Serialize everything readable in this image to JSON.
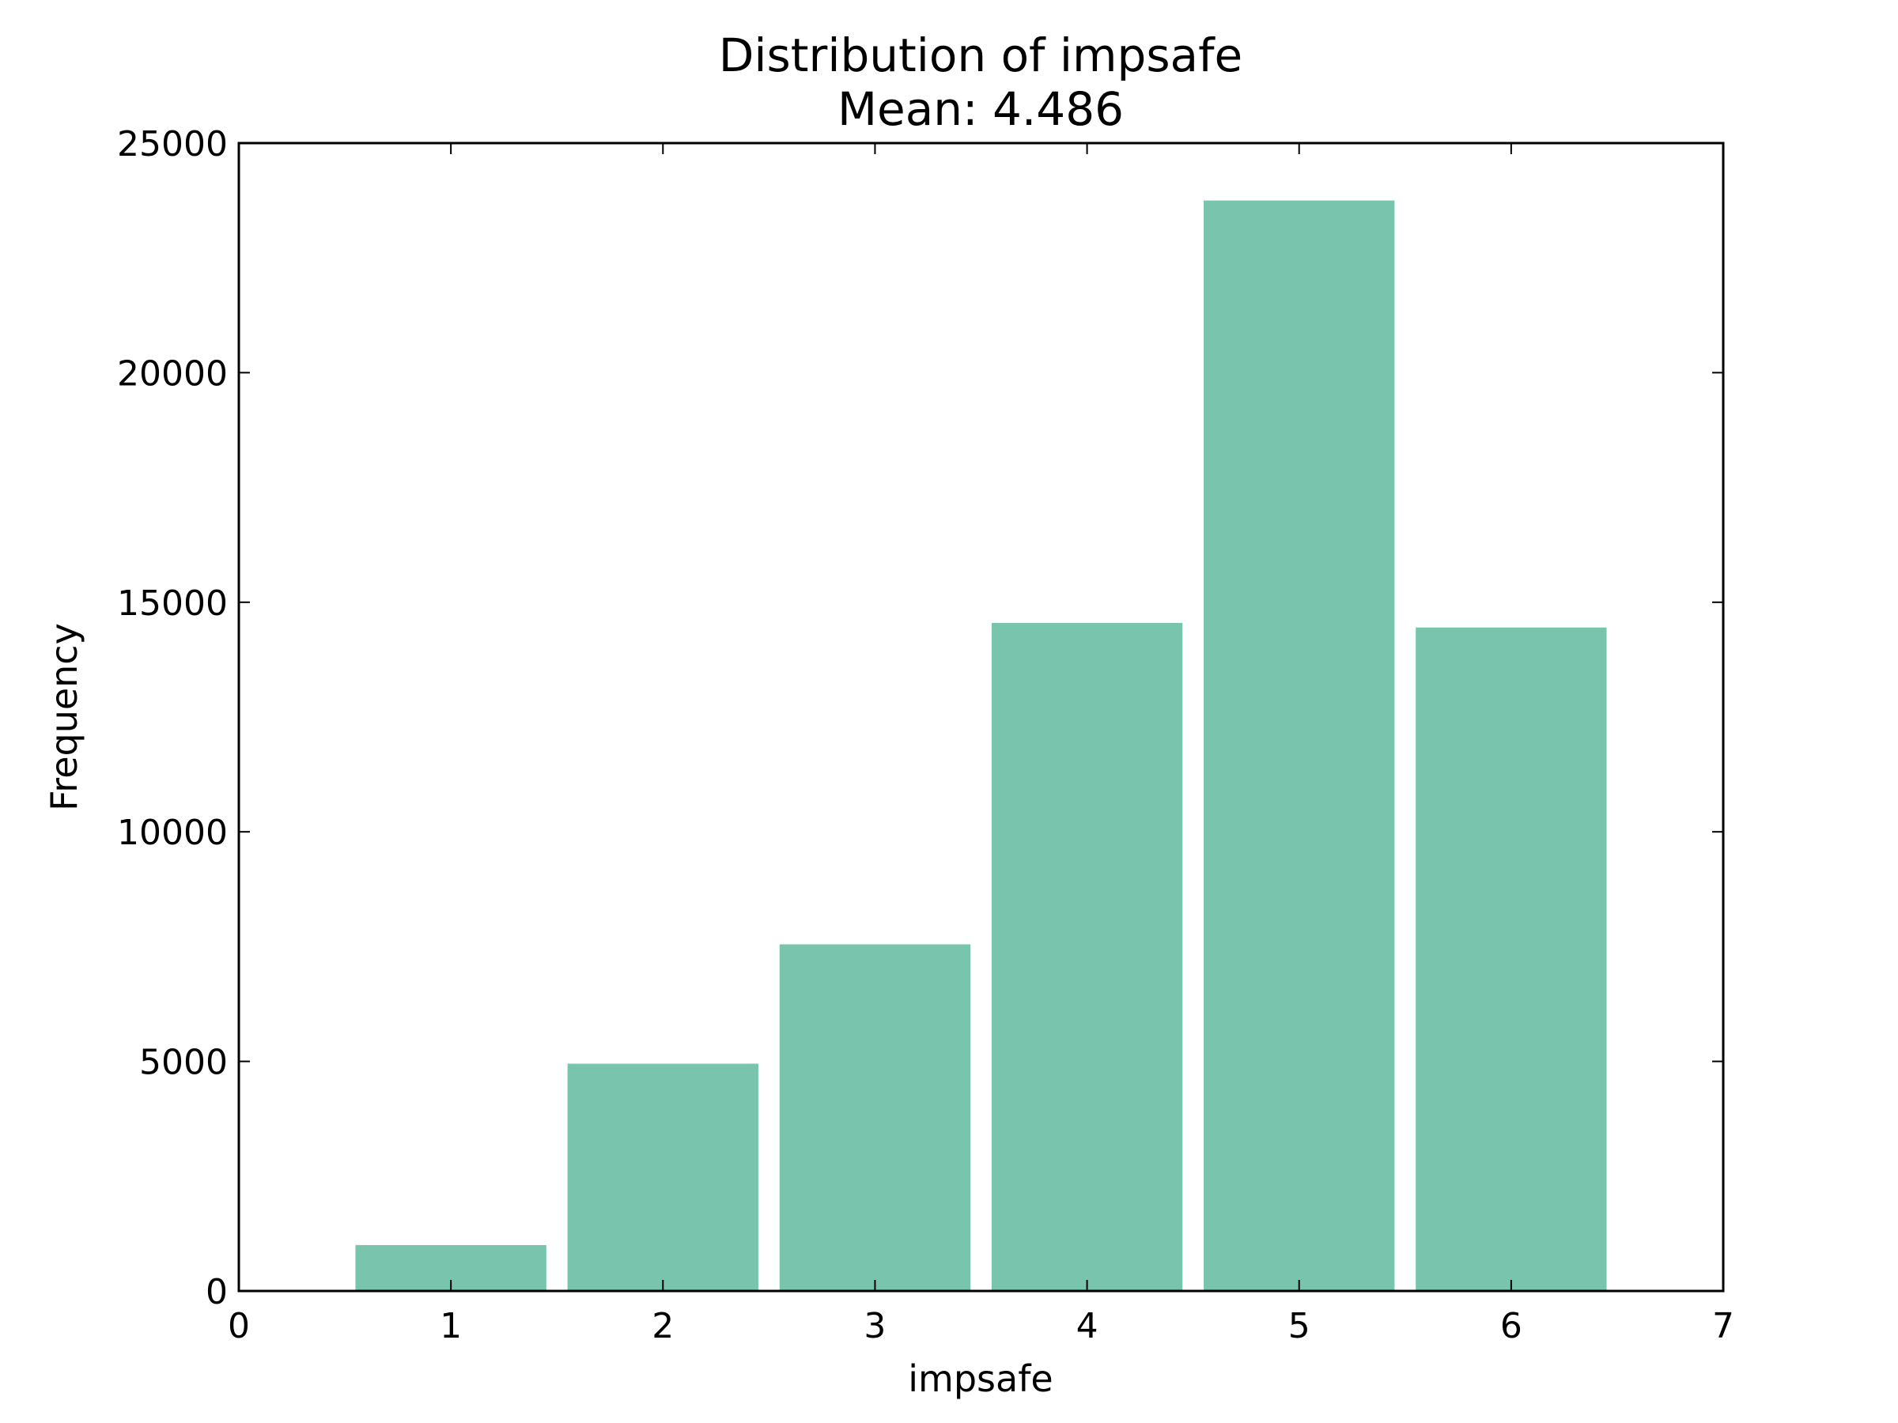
{
  "chart_data": {
    "type": "bar",
    "title": "Distribution of impsafe",
    "subtitle": "Mean: 4.486",
    "xlabel": "impsafe",
    "ylabel": "Frequency",
    "x": [
      1,
      2,
      3,
      4,
      5,
      6
    ],
    "values": [
      1000,
      4950,
      7550,
      14550,
      23750,
      14450
    ],
    "bar_width": 0.9,
    "xlim": [
      0,
      7
    ],
    "ylim": [
      0,
      25000
    ],
    "xticks": [
      0,
      1,
      2,
      3,
      4,
      5,
      6,
      7
    ],
    "yticks": [
      0,
      5000,
      10000,
      15000,
      20000,
      25000
    ],
    "grid": false,
    "bar_color": "#78c4ad"
  }
}
